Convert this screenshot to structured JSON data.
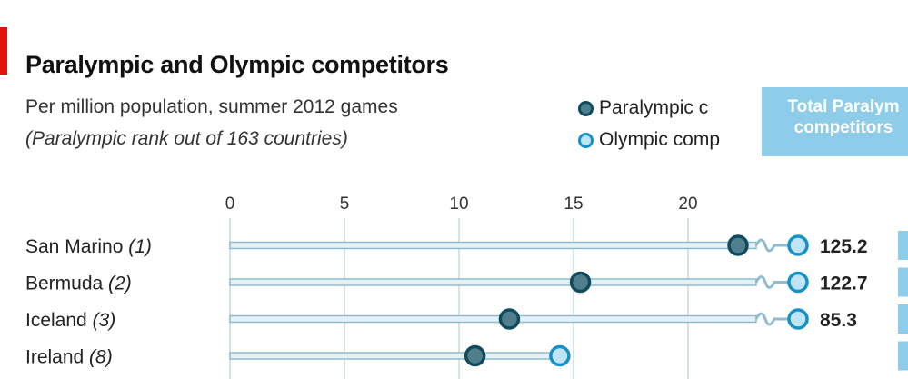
{
  "chart_data": {
    "type": "dot",
    "title": "Paralympic and Olympic competitors",
    "subtitle": "Per million population, summer 2012 games",
    "note": "(Paralympic rank out of 163 countries)",
    "x_ticks": [
      0,
      5,
      10,
      15,
      20
    ],
    "xlim": [
      0,
      22.5
    ],
    "legend": {
      "paralympic": "Paralympic c",
      "olympic": "Olympic comp"
    },
    "series": [
      {
        "name": "Paralympic competitors",
        "color": "#4f7f8c",
        "stroke": "#0f4b5c"
      },
      {
        "name": "Olympic competitors",
        "color": "#bfe4f4",
        "stroke": "#1591c8"
      }
    ],
    "total_header": [
      "Total Paralym",
      "competitors"
    ],
    "rows": [
      {
        "country": "San Marino",
        "rank": "(1)",
        "paralympic": 22.5,
        "olympic": 125.2,
        "olympic_label": "125.2",
        "broken": true
      },
      {
        "country": "Bermuda",
        "rank": "(2)",
        "paralympic": 15.3,
        "olympic": 122.7,
        "olympic_label": "122.7",
        "broken": true
      },
      {
        "country": "Iceland",
        "rank": "(3)",
        "paralympic": 12.2,
        "olympic": 85.3,
        "olympic_label": "85.3",
        "broken": true
      },
      {
        "country": "Ireland",
        "rank": "(8)",
        "paralympic": 10.7,
        "olympic": 14.4,
        "olympic_label": "",
        "broken": false
      }
    ]
  }
}
